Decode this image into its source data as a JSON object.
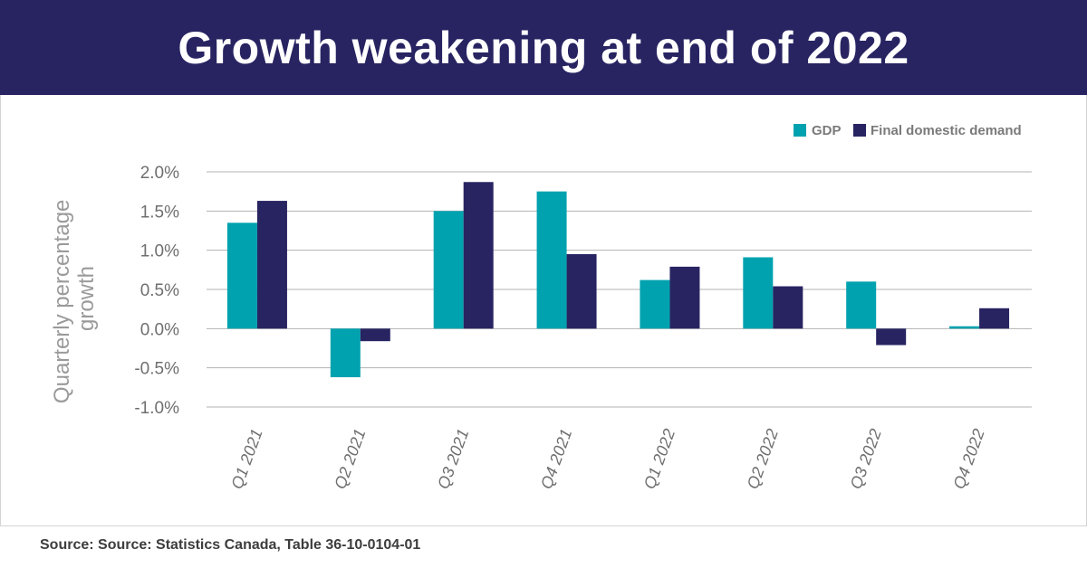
{
  "header": {
    "title": "Growth weakening at end of 2022"
  },
  "footer": {
    "source": "Source: Source: Statistics Canada, Table 36-10-0104-01"
  },
  "colors": {
    "gdp": "#00a2af",
    "fdd": "#282462",
    "header_bg": "#282462"
  },
  "chart_data": {
    "type": "bar",
    "title": "",
    "xlabel": "",
    "ylabel": "Quarterly percentage growth",
    "ylabel_lines": [
      "Quarterly percentage",
      "growth"
    ],
    "categories": [
      "Q1 2021",
      "Q2 2021",
      "Q3 2021",
      "Q4 2021",
      "Q1 2022",
      "Q2 2022",
      "Q3 2022",
      "Q4 2022"
    ],
    "series": [
      {
        "name": "GDP",
        "values": [
          1.35,
          -0.62,
          1.5,
          1.75,
          0.62,
          0.91,
          0.6,
          0.03
        ]
      },
      {
        "name": "Final domestic demand",
        "values": [
          1.63,
          -0.16,
          1.87,
          0.95,
          0.79,
          0.54,
          -0.21,
          0.26
        ]
      }
    ],
    "ylim": [
      -1.0,
      2.0
    ],
    "yticks": [
      2.0,
      1.5,
      1.0,
      0.5,
      0.0,
      -0.5,
      -1.0
    ],
    "ytick_labels": [
      "2.0%",
      "1.5%",
      "1.0%",
      "0.5%",
      "0.0%",
      "-0.5%",
      "-1.0%"
    ],
    "grid": true,
    "legend_position": "top-right"
  }
}
